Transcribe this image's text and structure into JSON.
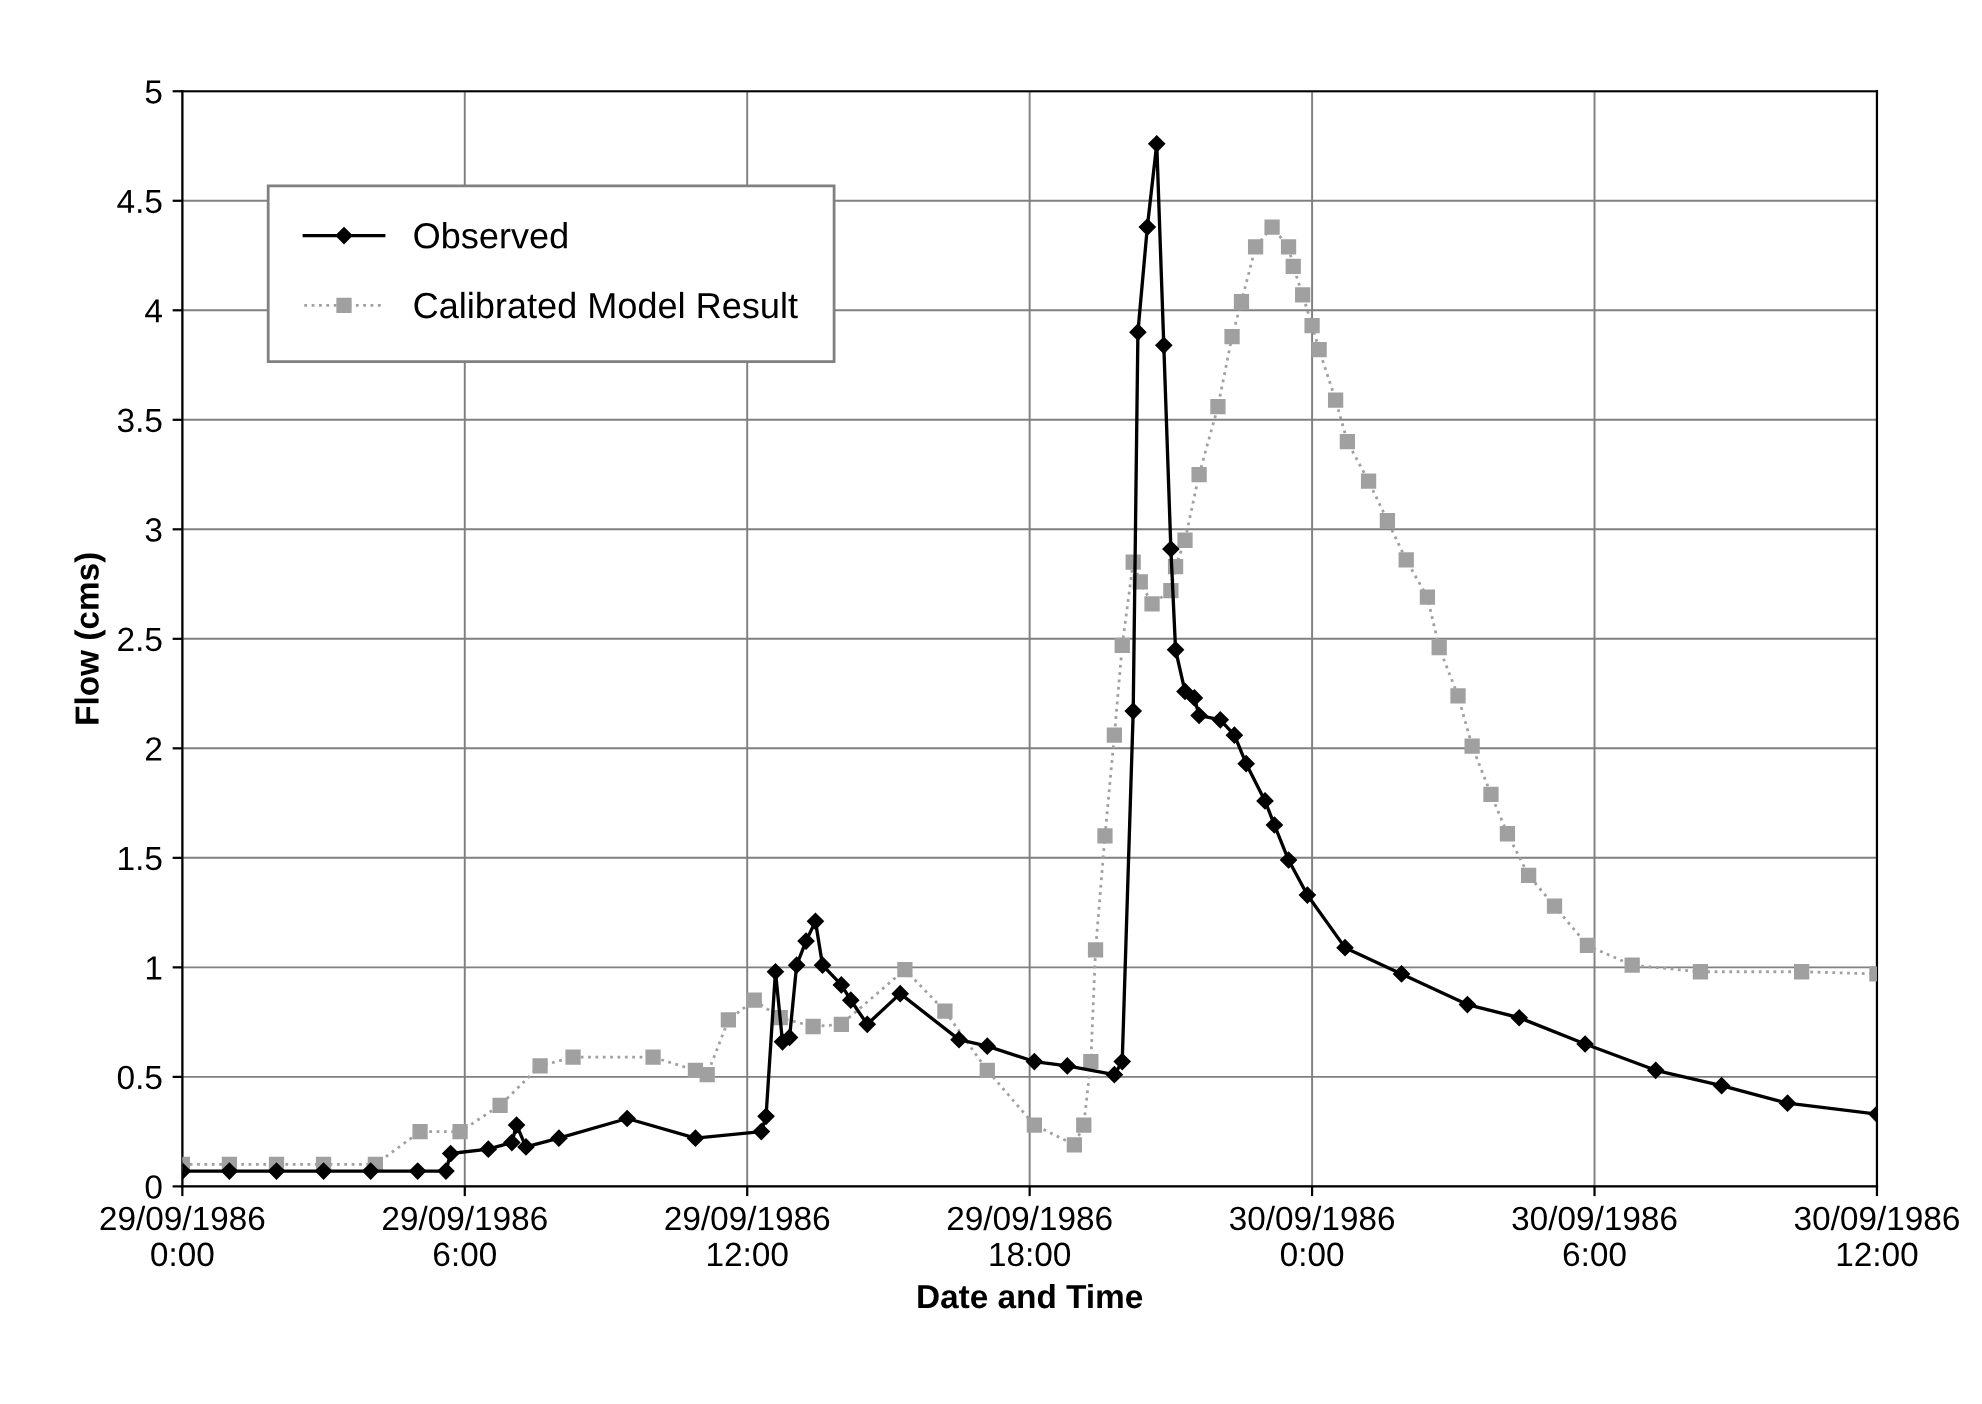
{
  "chart_data": {
    "type": "line",
    "xlabel": "Date and Time",
    "ylabel": "Flow (cms)",
    "xlim": [
      "1986-09-29T00:00",
      "1986-09-30T12:00"
    ],
    "xticks": [
      {
        "value": "1986-09-29T00:00",
        "label": "29/09/1986\n0:00"
      },
      {
        "value": "1986-09-29T06:00",
        "label": "29/09/1986\n6:00"
      },
      {
        "value": "1986-09-29T12:00",
        "label": "29/09/1986\n12:00"
      },
      {
        "value": "1986-09-29T18:00",
        "label": "29/09/1986\n18:00"
      },
      {
        "value": "1986-09-30T00:00",
        "label": "30/09/1986\n0:00"
      },
      {
        "value": "1986-09-30T06:00",
        "label": "30/09/1986\n6:00"
      },
      {
        "value": "1986-09-30T12:00",
        "label": "30/09/1986\n12:00"
      }
    ],
    "ylim": [
      0,
      5
    ],
    "yticks": [
      0,
      0.5,
      1,
      1.5,
      2,
      2.5,
      3,
      3.5,
      4,
      4.5,
      5
    ],
    "grid": true,
    "legend": "top left",
    "series": [
      {
        "name": "Observed",
        "color": "#000000",
        "marker": "diamond",
        "line_style": "solid",
        "x": [
          "1986-09-29T00:00",
          "1986-09-29T01:00",
          "1986-09-29T02:00",
          "1986-09-29T03:00",
          "1986-09-29T04:00",
          "1986-09-29T05:00",
          "1986-09-29T05:36",
          "1986-09-29T05:42",
          "1986-09-29T06:30",
          "1986-09-29T07:00",
          "1986-09-29T07:06",
          "1986-09-29T07:18",
          "1986-09-29T08:00",
          "1986-09-29T09:27",
          "1986-09-29T10:54",
          "1986-09-29T12:18",
          "1986-09-29T12:24",
          "1986-09-29T12:36",
          "1986-09-29T12:45",
          "1986-09-29T12:54",
          "1986-09-29T13:03",
          "1986-09-29T13:15",
          "1986-09-29T13:27",
          "1986-09-29T13:36",
          "1986-09-29T14:00",
          "1986-09-29T14:12",
          "1986-09-29T14:33",
          "1986-09-29T15:15",
          "1986-09-29T16:30",
          "1986-09-29T17:06",
          "1986-09-29T18:06",
          "1986-09-29T18:48",
          "1986-09-29T19:48",
          "1986-09-29T19:58",
          "1986-09-29T20:12",
          "1986-09-29T20:18",
          "1986-09-29T20:30",
          "1986-09-29T20:42",
          "1986-09-29T20:51",
          "1986-09-29T21:00",
          "1986-09-29T21:06",
          "1986-09-29T21:18",
          "1986-09-29T21:30",
          "1986-09-29T21:36",
          "1986-09-29T22:03",
          "1986-09-29T22:21",
          "1986-09-29T22:36",
          "1986-09-29T23:00",
          "1986-09-29T23:12",
          "1986-09-29T23:30",
          "1986-09-29T23:54",
          "1986-09-30T00:42",
          "1986-09-30T01:54",
          "1986-09-30T03:18",
          "1986-09-30T04:24",
          "1986-09-30T05:48",
          "1986-09-30T07:18",
          "1986-09-30T08:42",
          "1986-09-30T10:06",
          "1986-09-30T12:00"
        ],
        "values": [
          0.07,
          0.07,
          0.07,
          0.07,
          0.07,
          0.07,
          0.07,
          0.15,
          0.17,
          0.2,
          0.28,
          0.18,
          0.22,
          0.31,
          0.22,
          0.25,
          0.32,
          0.98,
          0.66,
          0.68,
          1.01,
          1.12,
          1.21,
          1.01,
          0.92,
          0.85,
          0.74,
          0.88,
          0.67,
          0.64,
          0.57,
          0.55,
          0.51,
          0.57,
          2.17,
          3.9,
          4.38,
          4.76,
          3.84,
          2.91,
          2.45,
          2.26,
          2.23,
          2.15,
          2.13,
          2.06,
          1.93,
          1.76,
          1.65,
          1.49,
          1.33,
          1.09,
          0.97,
          0.83,
          0.77,
          0.65,
          0.53,
          0.46,
          0.38,
          0.33
        ]
      },
      {
        "name": "Calibrated Model Result",
        "color": "#a0a0a0",
        "marker": "square",
        "line_style": "dotted",
        "x": [
          "1986-09-29T00:00",
          "1986-09-29T01:00",
          "1986-09-29T02:00",
          "1986-09-29T03:00",
          "1986-09-29T04:06",
          "1986-09-29T05:03",
          "1986-09-29T05:54",
          "1986-09-29T06:45",
          "1986-09-29T07:36",
          "1986-09-29T08:18",
          "1986-09-29T10:00",
          "1986-09-29T10:54",
          "1986-09-29T11:09",
          "1986-09-29T11:36",
          "1986-09-29T12:09",
          "1986-09-29T12:42",
          "1986-09-29T13:24",
          "1986-09-29T14:00",
          "1986-09-29T15:21",
          "1986-09-29T16:12",
          "1986-09-29T17:06",
          "1986-09-29T18:06",
          "1986-09-29T18:57",
          "1986-09-29T19:09",
          "1986-09-29T19:18",
          "1986-09-29T19:24",
          "1986-09-29T19:36",
          "1986-09-29T19:48",
          "1986-09-29T19:58",
          "1986-09-29T20:12",
          "1986-09-29T20:21",
          "1986-09-29T20:36",
          "1986-09-29T21:00",
          "1986-09-29T21:06",
          "1986-09-29T21:18",
          "1986-09-29T21:36",
          "1986-09-29T22:00",
          "1986-09-29T22:18",
          "1986-09-29T22:30",
          "1986-09-29T22:48",
          "1986-09-29T23:09",
          "1986-09-29T23:30",
          "1986-09-29T23:36",
          "1986-09-29T23:48",
          "1986-09-30T00:00",
          "1986-09-30T00:09",
          "1986-09-30T00:30",
          "1986-09-30T00:45",
          "1986-09-30T01:12",
          "1986-09-30T01:36",
          "1986-09-30T02:00",
          "1986-09-30T02:27",
          "1986-09-30T02:42",
          "1986-09-30T03:06",
          "1986-09-30T03:24",
          "1986-09-30T03:48",
          "1986-09-30T04:09",
          "1986-09-30T04:36",
          "1986-09-30T05:09",
          "1986-09-30T05:51",
          "1986-09-30T06:48",
          "1986-09-30T08:15",
          "1986-09-30T10:24",
          "1986-09-30T12:00"
        ],
        "values": [
          0.1,
          0.1,
          0.1,
          0.1,
          0.1,
          0.25,
          0.25,
          0.37,
          0.55,
          0.59,
          0.59,
          0.53,
          0.51,
          0.76,
          0.85,
          0.77,
          0.73,
          0.74,
          0.99,
          0.8,
          0.53,
          0.28,
          0.19,
          0.28,
          0.57,
          1.08,
          1.6,
          2.06,
          2.47,
          2.85,
          2.76,
          2.66,
          2.72,
          2.83,
          2.95,
          3.25,
          3.56,
          3.88,
          4.04,
          4.29,
          4.38,
          4.29,
          4.2,
          4.07,
          3.93,
          3.82,
          3.59,
          3.4,
          3.22,
          3.04,
          2.86,
          2.69,
          2.46,
          2.24,
          2.01,
          1.79,
          1.61,
          1.42,
          1.28,
          1.1,
          1.01,
          0.98,
          0.98,
          0.97
        ]
      }
    ]
  }
}
